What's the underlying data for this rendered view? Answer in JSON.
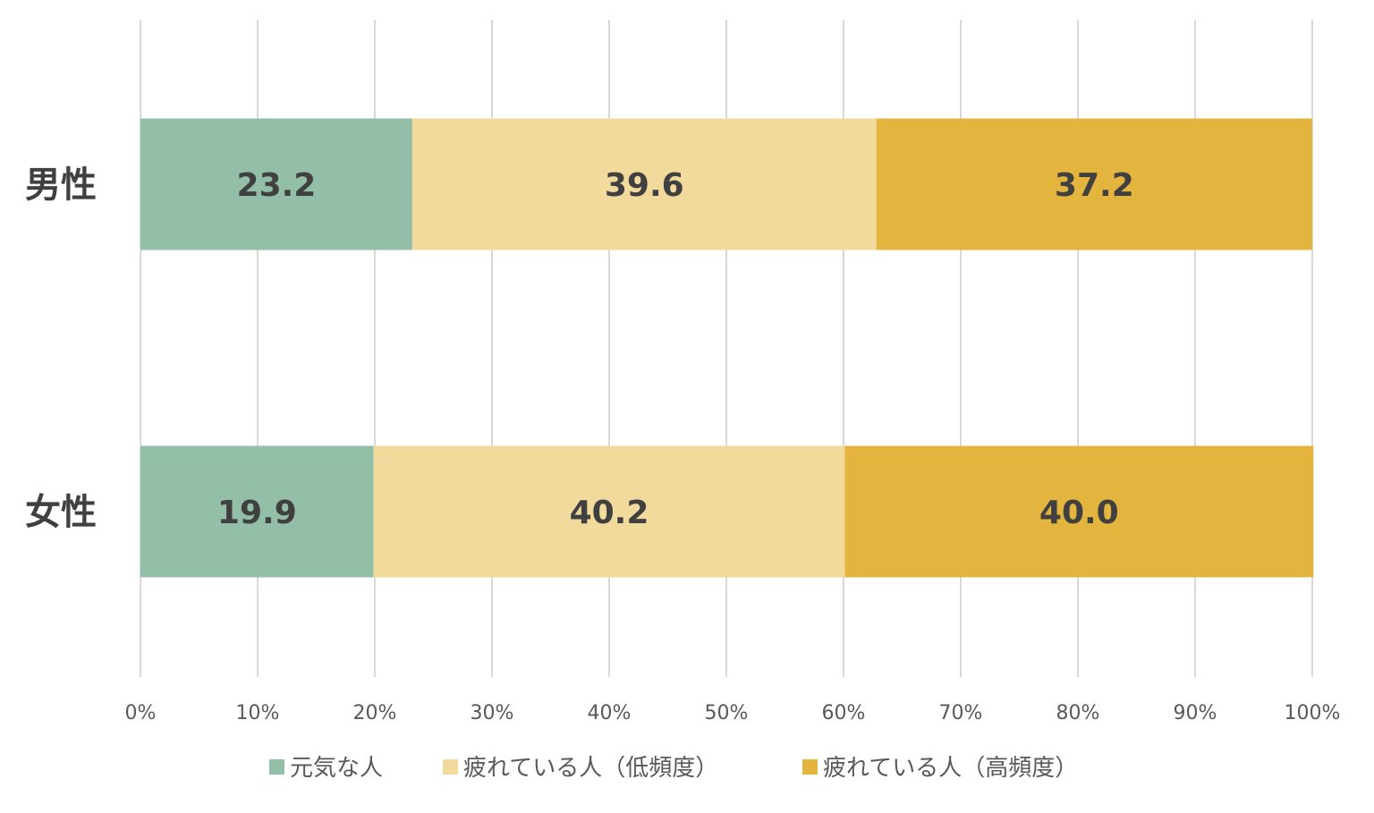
{
  "chart_data": {
    "type": "bar",
    "orientation": "horizontal",
    "stacked": "percent",
    "categories": [
      "男性",
      "女性"
    ],
    "series": [
      {
        "name": "元気な人",
        "values": [
          23.2,
          19.9
        ],
        "color": "#93bfa9"
      },
      {
        "name": "疲れている人（低頻度）",
        "values": [
          39.6,
          40.2
        ],
        "color": "#f2da9c"
      },
      {
        "name": "疲れている人（高頻度）",
        "values": [
          37.2,
          40.0
        ],
        "color": "#e3b53f"
      }
    ],
    "data_labels": [
      [
        "23.2",
        "19.9"
      ],
      [
        "39.6",
        "40.2"
      ],
      [
        "37.2",
        "40.0"
      ]
    ],
    "xticks": [
      "0%",
      "10%",
      "20%",
      "30%",
      "40%",
      "50%",
      "60%",
      "70%",
      "80%",
      "90%",
      "100%"
    ],
    "xlim": [
      0,
      100
    ],
    "grid": "vertical",
    "legend_position": "bottom"
  }
}
